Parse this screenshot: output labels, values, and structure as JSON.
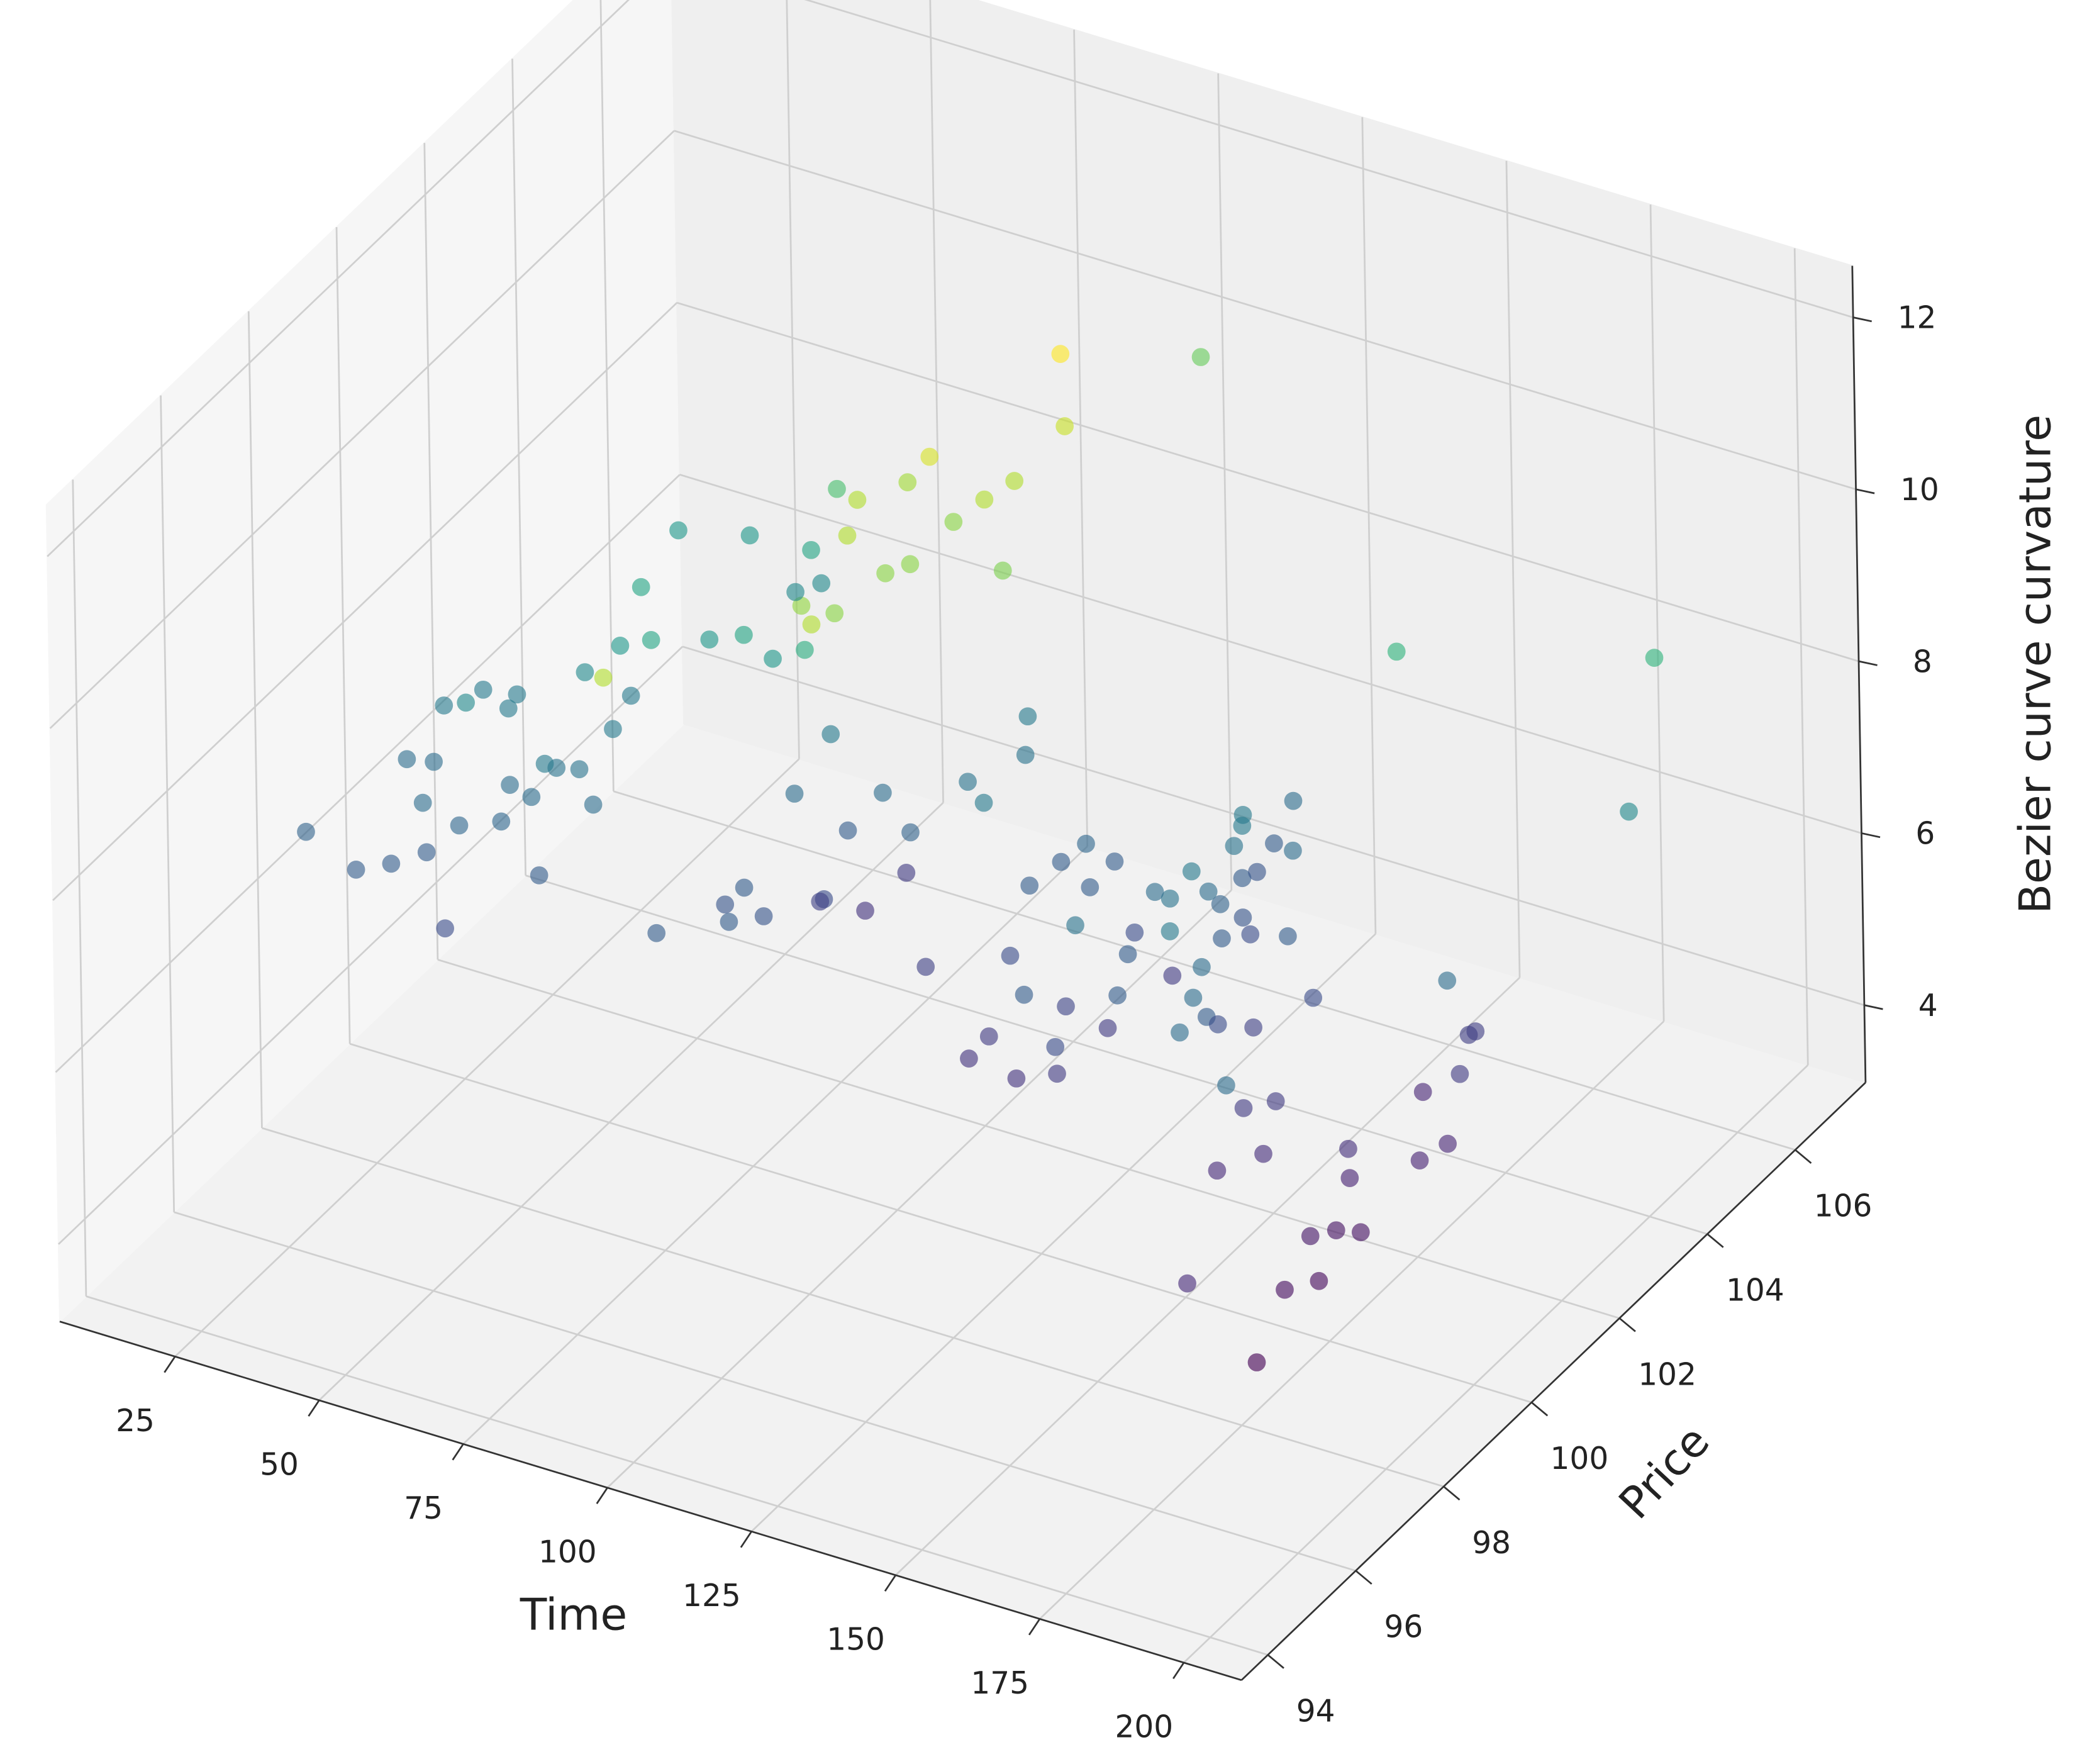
{
  "chart_data": {
    "type": "scatter3d",
    "x_label": "Time",
    "y_label": "Price",
    "z_label": "Bezier curve curvature",
    "xlim": [
      5,
      210
    ],
    "ylim": [
      93.4,
      107.6
    ],
    "zlim": [
      3.1,
      12.6
    ],
    "xticks": [
      25,
      50,
      75,
      100,
      125,
      150,
      175,
      200
    ],
    "yticks": [
      94,
      96,
      98,
      100,
      102,
      104,
      106
    ],
    "zticks": [
      4,
      6,
      8,
      10,
      12
    ],
    "grid": true,
    "colormap": [
      "#440154",
      "#482878",
      "#3e4989",
      "#31688e",
      "#26828e",
      "#1f9e89",
      "#35b779",
      "#6ece58",
      "#b5de2b",
      "#fde725"
    ],
    "x": [
      173.1,
      165.1,
      170.4,
      172.5,
      173.7,
      168.8,
      170.2,
      169.6,
      176.4,
      179.0,
      168.6,
      153.5,
      158.5,
      170.2,
      154.4,
      157.7,
      167.0,
      178.2,
      175.2,
      175.6,
      181.7,
      194.4,
      194.6,
      159.8,
      105.5,
      110.6,
      112.7,
      101.5,
      110.0,
      108.6,
      91.9,
      93.7,
      69.7,
      101.6,
      112.4,
      101.7,
      99.7,
      95.5,
      62.7,
      36.5,
      46.6,
      98.5,
      103.0,
      94.3,
      56.6,
      54.4,
      79.2,
      66.6,
      55.6,
      65.5,
      54.0,
      44.7,
      45.4,
      82.9,
      37.7,
      41.0,
      43.2,
      41.9,
      38.7,
      45.0,
      17.7,
      20.7,
      25.8,
      14.2,
      18.1,
      7.3,
      16.7,
      20.5,
      23.6,
      30.5,
      27.8,
      41.6,
      65.0,
      73.0,
      74.4,
      76.4,
      75.0,
      77.6,
      76.1,
      87.0,
      70.0,
      72.6,
      81.5,
      102.2,
      94.8,
      96.1,
      98.7,
      95.5,
      108.7,
      121.9,
      111.0,
      109.0,
      118.0,
      125.1,
      127.2,
      120.6,
      125.5,
      134.3,
      128.7,
      130.0,
      121.9,
      107.6,
      108.5,
      112.9,
      115.8,
      115.5,
      153.6,
      150.6,
      126.8,
      147.5,
      149.0,
      145.5,
      147.0,
      154.4,
      148.6,
      137.4,
      137.7,
      137.7,
      138.0,
      137.5,
      131.0,
      139.0,
      134.6,
      133.3,
      134.0,
      136.7,
      138.0,
      139.4,
      138.7,
      140.2,
      144.4,
      143.5,
      67.7,
      70.3,
      72.6,
      32.8,
      35.8,
      31.3,
      22.3,
      26.2,
      26.6,
      39.0
    ],
    "y": [
      98.6,
      98.1,
      99.6,
      100.1,
      100.9,
      100.4,
      100.8,
      101.2,
      101.9,
      102.2,
      103.0,
      100.3,
      100.7,
      101.1,
      100.8,
      101.1,
      98.8,
      102.6,
      103.2,
      103.3,
      101.9,
      104.4,
      105.0,
      103.7,
      106.4,
      102.6,
      102.4,
      100.8,
      101.6,
      101.1,
      100.4,
      101.3,
      102.8,
      101.3,
      101.0,
      100.3,
      100.0,
      99.7,
      103.1,
      103.5,
      103.8,
      99.0,
      97.9,
      98.8,
      104.1,
      103.8,
      100.8,
      101.7,
      101.7,
      101.2,
      100.6,
      101.1,
      101.5,
      95.8,
      101.2,
      101.8,
      101.1,
      100.5,
      100.4,
      100.4,
      100.6,
      101.1,
      101.2,
      100.2,
      100.3,
      98.8,
      98.7,
      99.0,
      99.4,
      98.9,
      99.6,
      99.6,
      99.2,
      99.8,
      100.4,
      101.5,
      102.6,
      103.2,
      102.1,
      102.1,
      101.7,
      102.2,
      102.2,
      101.8,
      102.4,
      103.6,
      103.2,
      101.3,
      101.5,
      100.1,
      100.7,
      100.5,
      100.4,
      100.4,
      100.1,
      101.2,
      101.5,
      100.6,
      100.4,
      101.4,
      102.6,
      102.1,
      102.7,
      102.7,
      102.4,
      103.0,
      99.5,
      100.2,
      102.8,
      100.8,
      100.7,
      101.4,
      102.0,
      102.4,
      102.6,
      103.2,
      103.0,
      102.5,
      102.2,
      101.4,
      101.9,
      101.7,
      103.4,
      103.9,
      104.2,
      104.3,
      103.0,
      102.8,
      102.7,
      102.2,
      100.5,
      103.4,
      100.4,
      100.5,
      101.9,
      99.9,
      100.2,
      100.3,
      99.5,
      100.0,
      100.9,
      100.1
    ],
    "z": [
      3.5,
      4.5,
      3.8,
      3.7,
      3.9,
      4.0,
      3.9,
      4.3,
      4.3,
      4.4,
      4.4,
      4.5,
      4.6,
      4.7,
      5.0,
      5.0,
      6.5,
      5.0,
      5.1,
      5.1,
      6.5,
      7.5,
      9.0,
      9.0,
      10.0,
      12.0,
      11.3,
      11.5,
      11.0,
      11.0,
      11.0,
      10.8,
      9.5,
      10.5,
      10.3,
      10.5,
      10.5,
      11.0,
      8.5,
      8.0,
      8.0,
      10.5,
      11.0,
      10.6,
      7.5,
      7.5,
      8.8,
      8.0,
      8.0,
      8.5,
      8.5,
      8.0,
      8.5,
      11.0,
      7.5,
      7.0,
      7.0,
      6.8,
      6.8,
      6.5,
      7.0,
      7.0,
      7.0,
      6.5,
      6.5,
      6.2,
      6.0,
      6.0,
      6.0,
      5.5,
      6.3,
      6.0,
      6.0,
      6.0,
      5.8,
      5.5,
      4.8,
      5.0,
      6.0,
      6.2,
      6.5,
      7.0,
      6.5,
      7.0,
      6.8,
      7.0,
      6.8,
      5.2,
      5.5,
      6.0,
      5.0,
      4.8,
      4.8,
      5.0,
      5.5,
      5.3,
      5.0,
      6.0,
      6.8,
      6.0,
      5.5,
      6.0,
      6.0,
      6.3,
      6.0,
      6.0,
      6.5,
      6.5,
      5.0,
      6.5,
      6.0,
      5.5,
      5.2,
      5.5,
      6.0,
      5.5,
      5.8,
      6.2,
      6.5,
      6.8,
      6.5,
      7.0,
      6.0,
      5.8,
      6.0,
      6.5,
      7.0,
      7.0,
      6.8,
      6.0,
      7.0,
      6.5,
      5.8,
      6.0,
      5.2,
      6.3,
      6.5,
      6.5,
      6.5,
      7.5,
      7.0,
      7.0
    ]
  }
}
